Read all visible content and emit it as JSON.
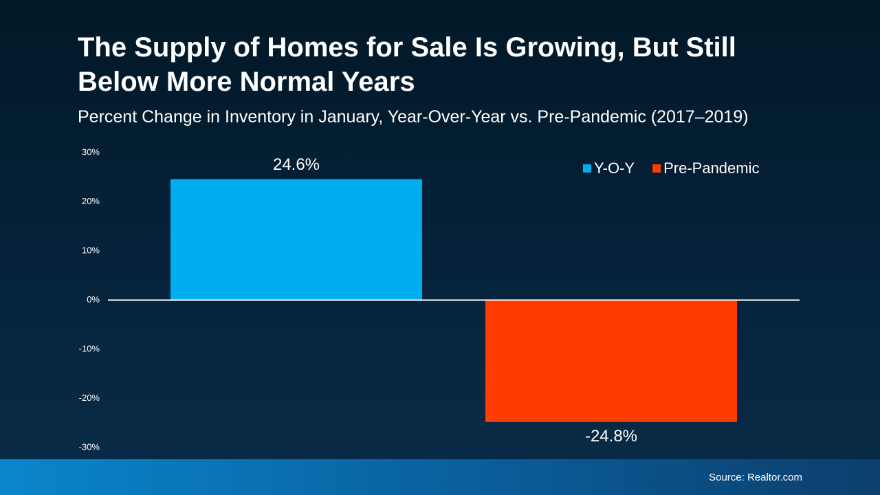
{
  "chart_data": {
    "type": "bar",
    "title": "The Supply of Homes for Sale Is Growing, But Still Below More Normal Years",
    "subtitle": "Percent Change in Inventory in January, Year-Over-Year vs. Pre-Pandemic (2017–2019)",
    "source": "Source: Realtor.com",
    "categories": [
      null
    ],
    "series": [
      {
        "name": "Y-O-Y",
        "color": "#00adef",
        "values": [
          24.6
        ],
        "value_labels": [
          "24.6%"
        ]
      },
      {
        "name": "Pre-Pandemic",
        "color": "#ff3b00",
        "values": [
          -24.8
        ],
        "value_labels": [
          "-24.8%"
        ]
      }
    ],
    "ylim": [
      -30,
      30
    ],
    "yticks": [
      {
        "value": -30,
        "label": "-30%"
      },
      {
        "value": -20,
        "label": "-20%"
      },
      {
        "value": -10,
        "label": "-10%"
      },
      {
        "value": 0,
        "label": "0%"
      },
      {
        "value": 10,
        "label": "10%"
      },
      {
        "value": 20,
        "label": "20%"
      },
      {
        "value": 30,
        "label": "30%"
      }
    ],
    "grid": false,
    "legend": "top-right"
  }
}
